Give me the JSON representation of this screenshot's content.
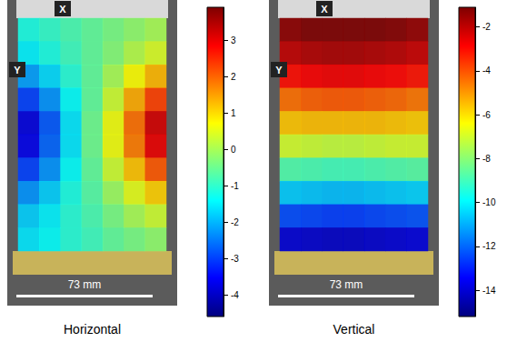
{
  "chart_data": [
    {
      "type": "heatmap",
      "title": "Horizontal",
      "annotations": [
        "X",
        "Y",
        "73 mm"
      ],
      "tick_labels": false,
      "cells": [
        [
          -1.2,
          -1.0,
          -0.8,
          -0.6,
          -0.4,
          -0.2,
          0.0
        ],
        [
          -1.5,
          -1.2,
          -0.9,
          -0.6,
          -0.3,
          0.1,
          0.4
        ],
        [
          -2.2,
          -1.7,
          -1.1,
          -0.6,
          0.0,
          0.7,
          1.3
        ],
        [
          -3.0,
          -2.3,
          -1.4,
          -0.6,
          0.3,
          1.4,
          2.3
        ],
        [
          -3.8,
          -2.8,
          -1.6,
          -0.5,
          0.6,
          1.9,
          3.2
        ],
        [
          -3.7,
          -2.7,
          -1.6,
          -0.5,
          0.6,
          1.8,
          3.0
        ],
        [
          -3.0,
          -2.3,
          -1.4,
          -0.6,
          0.3,
          1.2,
          2.1
        ],
        [
          -2.3,
          -1.8,
          -1.2,
          -0.7,
          -0.1,
          0.5,
          1.1
        ],
        [
          -1.8,
          -1.5,
          -1.1,
          -0.8,
          -0.4,
          0.0,
          0.3
        ],
        [
          -1.6,
          -1.4,
          -1.1,
          -0.9,
          -0.6,
          -0.4,
          -0.2
        ]
      ],
      "colorbar_range": [
        -4.6,
        3.9
      ],
      "colorbar_ticks": [
        3,
        2,
        1,
        0,
        -1,
        -2,
        -3,
        -4
      ]
    },
    {
      "type": "heatmap",
      "title": "Vertical",
      "annotations": [
        "X",
        "Y",
        "73 mm"
      ],
      "tick_labels": false,
      "cells": [
        [
          -1.3,
          -1.1,
          -1.0,
          -1.0,
          -1.1,
          -1.2,
          -1.4
        ],
        [
          -2.0,
          -1.8,
          -1.7,
          -1.7,
          -1.8,
          -1.9,
          -2.1
        ],
        [
          -3.0,
          -2.8,
          -2.7,
          -2.7,
          -2.8,
          -2.9,
          -3.1
        ],
        [
          -4.4,
          -4.2,
          -4.1,
          -4.1,
          -4.2,
          -4.3,
          -4.5
        ],
        [
          -5.6,
          -5.5,
          -5.5,
          -5.5,
          -5.5,
          -5.6,
          -5.7
        ],
        [
          -7.0,
          -7.1,
          -7.2,
          -7.2,
          -7.1,
          -7.0,
          -7.0
        ],
        [
          -8.8,
          -8.9,
          -9.0,
          -9.0,
          -8.9,
          -8.8,
          -8.7
        ],
        [
          -10.6,
          -10.7,
          -10.8,
          -10.8,
          -10.7,
          -10.6,
          -10.5
        ],
        [
          -12.4,
          -12.5,
          -12.6,
          -12.6,
          -12.5,
          -12.4,
          -12.3
        ],
        [
          -14.0,
          -14.1,
          -14.2,
          -14.2,
          -14.1,
          -14.0,
          -13.9
        ]
      ],
      "colorbar_range": [
        -15.2,
        -1.1
      ],
      "colorbar_ticks": [
        -2,
        -4,
        -6,
        -8,
        -10,
        -12,
        -14
      ]
    }
  ]
}
